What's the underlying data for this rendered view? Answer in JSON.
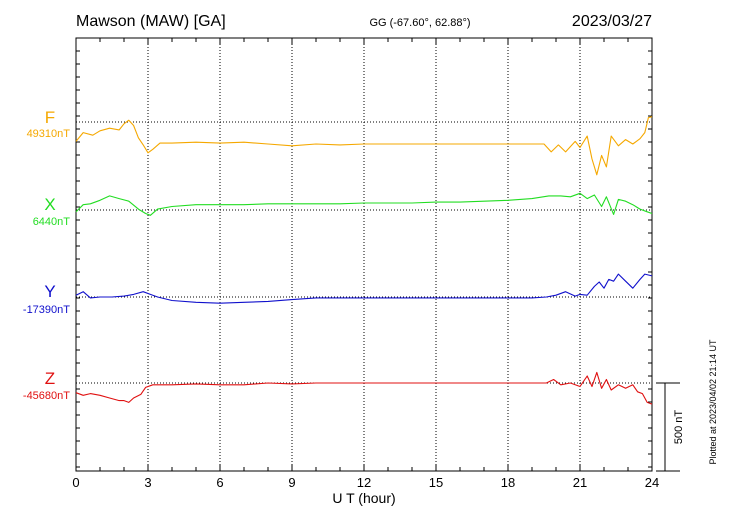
{
  "header": {
    "station": "Mawson (MAW)  [GA]",
    "coords": "GG (-67.60°,  62.88°)",
    "date": "2023/03/27"
  },
  "footer": {
    "plotted_at": "Plotted at 2023/04/02 21:14 UT"
  },
  "colors": {
    "F": "#f5a800",
    "X": "#22dd22",
    "Y": "#1010cc",
    "Z": "#e01010",
    "grid": "#000000"
  },
  "chart_data": {
    "type": "line",
    "xlabel": "U T (hour)",
    "xlim": [
      0,
      24
    ],
    "x_ticks": [
      0,
      3,
      6,
      9,
      12,
      15,
      18,
      21,
      24
    ],
    "scale_bar_label": "500 nT",
    "scale_bar_nT": 500,
    "grid": true,
    "series": [
      {
        "name": "F",
        "baseline_label": "49310nT",
        "baseline_nT": 49310,
        "points": [
          [
            0,
            49200
          ],
          [
            0.3,
            49250
          ],
          [
            0.7,
            49235
          ],
          [
            1.0,
            49260
          ],
          [
            1.4,
            49275
          ],
          [
            1.8,
            49265
          ],
          [
            2.0,
            49300
          ],
          [
            2.2,
            49320
          ],
          [
            2.4,
            49290
          ],
          [
            2.6,
            49220
          ],
          [
            2.8,
            49180
          ],
          [
            3.0,
            49135
          ],
          [
            3.2,
            49155
          ],
          [
            3.5,
            49190
          ],
          [
            4,
            49190
          ],
          [
            5,
            49195
          ],
          [
            6,
            49190
          ],
          [
            7,
            49195
          ],
          [
            8,
            49185
          ],
          [
            9,
            49175
          ],
          [
            10,
            49185
          ],
          [
            11,
            49180
          ],
          [
            12,
            49185
          ],
          [
            13,
            49185
          ],
          [
            14,
            49185
          ],
          [
            15,
            49185
          ],
          [
            16,
            49185
          ],
          [
            17,
            49185
          ],
          [
            18,
            49185
          ],
          [
            19,
            49185
          ],
          [
            19.5,
            49185
          ],
          [
            19.8,
            49140
          ],
          [
            20.1,
            49180
          ],
          [
            20.4,
            49140
          ],
          [
            20.8,
            49200
          ],
          [
            21.0,
            49165
          ],
          [
            21.3,
            49230
          ],
          [
            21.5,
            49100
          ],
          [
            21.7,
            49010
          ],
          [
            21.9,
            49120
          ],
          [
            22.1,
            49055
          ],
          [
            22.3,
            49230
          ],
          [
            22.6,
            49175
          ],
          [
            22.9,
            49210
          ],
          [
            23.2,
            49185
          ],
          [
            23.5,
            49215
          ],
          [
            23.7,
            49250
          ],
          [
            23.85,
            49335
          ],
          [
            24,
            49340
          ]
        ]
      },
      {
        "name": "X",
        "baseline_label": "6440nT",
        "baseline_nT": 6440,
        "points": [
          [
            0,
            6430
          ],
          [
            0.3,
            6470
          ],
          [
            0.6,
            6475
          ],
          [
            1.0,
            6495
          ],
          [
            1.4,
            6520
          ],
          [
            1.8,
            6505
          ],
          [
            2.2,
            6490
          ],
          [
            2.6,
            6445
          ],
          [
            2.9,
            6420
          ],
          [
            3.1,
            6410
          ],
          [
            3.4,
            6445
          ],
          [
            4,
            6460
          ],
          [
            5,
            6470
          ],
          [
            6,
            6470
          ],
          [
            7,
            6470
          ],
          [
            8,
            6475
          ],
          [
            9,
            6475
          ],
          [
            10,
            6475
          ],
          [
            11,
            6475
          ],
          [
            12,
            6480
          ],
          [
            13,
            6480
          ],
          [
            14,
            6480
          ],
          [
            15,
            6485
          ],
          [
            16,
            6485
          ],
          [
            17,
            6490
          ],
          [
            18,
            6495
          ],
          [
            19,
            6505
          ],
          [
            19.7,
            6520
          ],
          [
            20.2,
            6520
          ],
          [
            20.6,
            6515
          ],
          [
            21.0,
            6535
          ],
          [
            21.3,
            6505
          ],
          [
            21.6,
            6525
          ],
          [
            21.9,
            6460
          ],
          [
            22.1,
            6515
          ],
          [
            22.4,
            6415
          ],
          [
            22.6,
            6500
          ],
          [
            22.9,
            6490
          ],
          [
            23.2,
            6470
          ],
          [
            23.5,
            6445
          ],
          [
            23.8,
            6430
          ],
          [
            24,
            6420
          ]
        ]
      },
      {
        "name": "Y",
        "baseline_label": "-17390nT",
        "baseline_nT": -17390,
        "points": [
          [
            0,
            -17380
          ],
          [
            0.3,
            -17360
          ],
          [
            0.6,
            -17395
          ],
          [
            1,
            -17390
          ],
          [
            1.5,
            -17390
          ],
          [
            2,
            -17385
          ],
          [
            2.4,
            -17375
          ],
          [
            2.8,
            -17360
          ],
          [
            3.1,
            -17375
          ],
          [
            3.4,
            -17390
          ],
          [
            4,
            -17410
          ],
          [
            5,
            -17420
          ],
          [
            6,
            -17425
          ],
          [
            7,
            -17420
          ],
          [
            8,
            -17415
          ],
          [
            9,
            -17405
          ],
          [
            10,
            -17395
          ],
          [
            11,
            -17395
          ],
          [
            12,
            -17395
          ],
          [
            13,
            -17395
          ],
          [
            14,
            -17395
          ],
          [
            15,
            -17395
          ],
          [
            16,
            -17395
          ],
          [
            17,
            -17395
          ],
          [
            18,
            -17395
          ],
          [
            19,
            -17395
          ],
          [
            19.6,
            -17390
          ],
          [
            20.0,
            -17380
          ],
          [
            20.4,
            -17360
          ],
          [
            20.8,
            -17385
          ],
          [
            21.0,
            -17375
          ],
          [
            21.3,
            -17380
          ],
          [
            21.6,
            -17330
          ],
          [
            21.8,
            -17305
          ],
          [
            22.0,
            -17340
          ],
          [
            22.2,
            -17290
          ],
          [
            22.4,
            -17300
          ],
          [
            22.6,
            -17260
          ],
          [
            22.9,
            -17300
          ],
          [
            23.2,
            -17340
          ],
          [
            23.5,
            -17290
          ],
          [
            23.7,
            -17260
          ],
          [
            24,
            -17270
          ]
        ]
      },
      {
        "name": "Z",
        "baseline_label": "-45680nT",
        "baseline_nT": -45680,
        "points": [
          [
            0,
            -45735
          ],
          [
            0.3,
            -45750
          ],
          [
            0.6,
            -45740
          ],
          [
            1.0,
            -45750
          ],
          [
            1.4,
            -45765
          ],
          [
            1.8,
            -45780
          ],
          [
            2.0,
            -45780
          ],
          [
            2.2,
            -45790
          ],
          [
            2.4,
            -45765
          ],
          [
            2.7,
            -45745
          ],
          [
            2.9,
            -45705
          ],
          [
            3.2,
            -45690
          ],
          [
            3.6,
            -45690
          ],
          [
            4,
            -45690
          ],
          [
            5,
            -45685
          ],
          [
            6,
            -45690
          ],
          [
            7,
            -45690
          ],
          [
            8,
            -45680
          ],
          [
            9,
            -45685
          ],
          [
            10,
            -45680
          ],
          [
            11,
            -45680
          ],
          [
            12,
            -45680
          ],
          [
            13,
            -45680
          ],
          [
            14,
            -45680
          ],
          [
            15,
            -45680
          ],
          [
            16,
            -45680
          ],
          [
            17,
            -45680
          ],
          [
            18,
            -45680
          ],
          [
            19,
            -45680
          ],
          [
            19.6,
            -45680
          ],
          [
            19.9,
            -45660
          ],
          [
            20.2,
            -45690
          ],
          [
            20.6,
            -45680
          ],
          [
            21.0,
            -45700
          ],
          [
            21.3,
            -45640
          ],
          [
            21.5,
            -45700
          ],
          [
            21.7,
            -45620
          ],
          [
            21.9,
            -45710
          ],
          [
            22.1,
            -45660
          ],
          [
            22.3,
            -45720
          ],
          [
            22.6,
            -45690
          ],
          [
            22.9,
            -45710
          ],
          [
            23.2,
            -45690
          ],
          [
            23.4,
            -45730
          ],
          [
            23.6,
            -45740
          ],
          [
            23.8,
            -45790
          ],
          [
            24,
            -45800
          ]
        ]
      }
    ]
  }
}
